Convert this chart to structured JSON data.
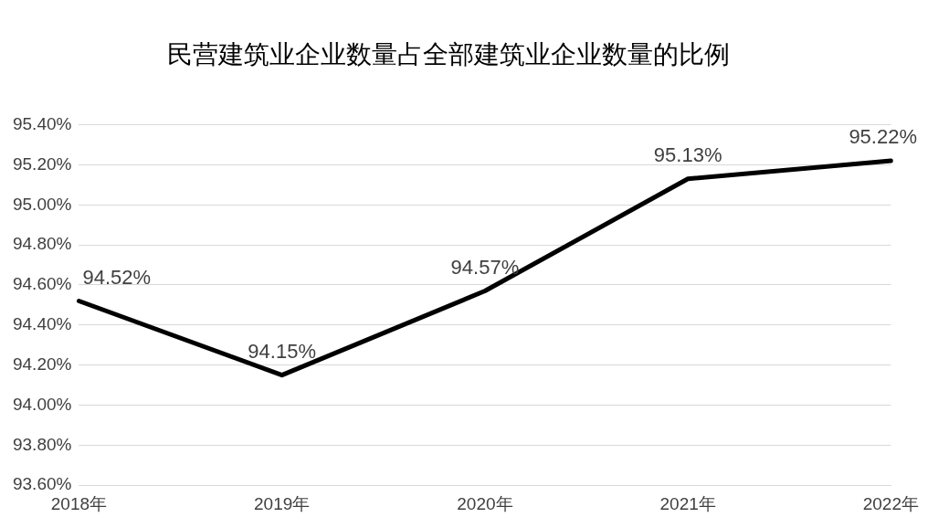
{
  "chart_data": {
    "type": "line",
    "title": "民营建筑业企业数量占全部建筑业企业数量的比例",
    "categories": [
      "2018年",
      "2019年",
      "2020年",
      "2021年",
      "2022年"
    ],
    "series": [
      {
        "color": "#000000",
        "values": [
          94.52,
          94.15,
          94.57,
          95.13,
          95.22
        ],
        "value_labels": [
          "94.52%",
          "94.15%",
          "94.57%",
          "95.13%",
          "95.22%"
        ]
      }
    ],
    "ylim": [
      93.6,
      95.4
    ],
    "yticks": [
      {
        "value": 93.6,
        "label": "93.60%"
      },
      {
        "value": 93.8,
        "label": "93.80%"
      },
      {
        "value": 94.0,
        "label": "94.00%"
      },
      {
        "value": 94.2,
        "label": "94.20%"
      },
      {
        "value": 94.4,
        "label": "94.40%"
      },
      {
        "value": 94.6,
        "label": "94.60%"
      },
      {
        "value": 94.8,
        "label": "94.80%"
      },
      {
        "value": 95.0,
        "label": "95.00%"
      },
      {
        "value": 95.2,
        "label": "95.20%"
      },
      {
        "value": 95.4,
        "label": "95.40%"
      }
    ],
    "grid": "y",
    "legend": false,
    "marker": "none",
    "line_style": "solid"
  }
}
